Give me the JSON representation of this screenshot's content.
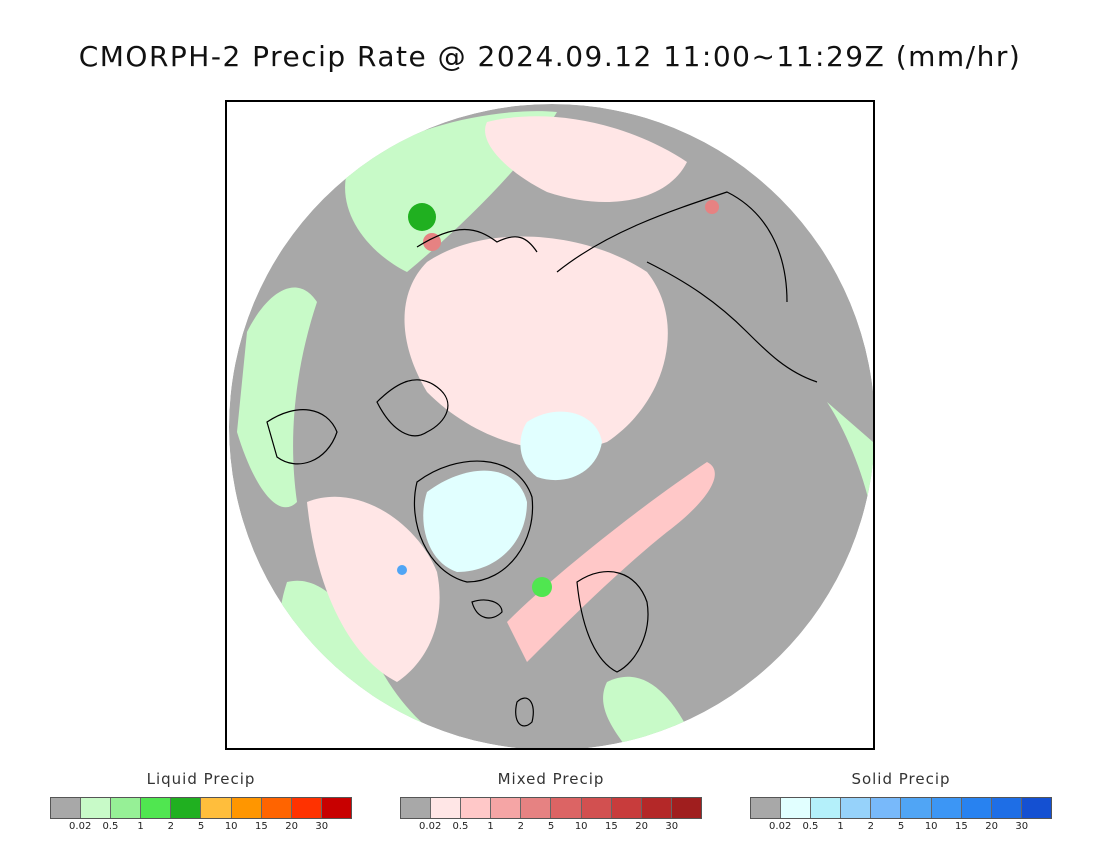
{
  "title": "CMORPH-2 Precip Rate @ 2024.09.12 11:00~11:29Z (mm/hr)",
  "colors": {
    "no_precip": "#a8a8a8",
    "land_fill": "#a8a8a8",
    "coastline": "#000000",
    "frame": "#000000"
  },
  "legends": [
    {
      "id": "liquid",
      "title": "Liquid Precip",
      "ticks": [
        "0.02",
        "0.5",
        "1",
        "2",
        "5",
        "10",
        "15",
        "20",
        "30"
      ],
      "colors": [
        "#a8a8a8",
        "#c8fac8",
        "#96f096",
        "#50e650",
        "#20b020",
        "#ffbe3c",
        "#ff9600",
        "#ff6400",
        "#ff3200",
        "#c80000"
      ]
    },
    {
      "id": "mixed",
      "title": "Mixed Precip",
      "ticks": [
        "0.02",
        "0.5",
        "1",
        "2",
        "5",
        "10",
        "15",
        "20",
        "30"
      ],
      "colors": [
        "#a8a8a8",
        "#ffe6e6",
        "#ffc8c8",
        "#f5a5a5",
        "#e68282",
        "#dc6464",
        "#d25050",
        "#c83c3c",
        "#b42828",
        "#a01e1e"
      ]
    },
    {
      "id": "solid",
      "title": "Solid Precip",
      "ticks": [
        "0.02",
        "0.5",
        "1",
        "2",
        "5",
        "10",
        "15",
        "20",
        "30"
      ],
      "colors": [
        "#a8a8a8",
        "#e1ffff",
        "#b4f0fa",
        "#96d2fa",
        "#78b9fa",
        "#50a5f5",
        "#3c96f5",
        "#2882f0",
        "#1e6ee6",
        "#1450d2"
      ]
    }
  ]
}
